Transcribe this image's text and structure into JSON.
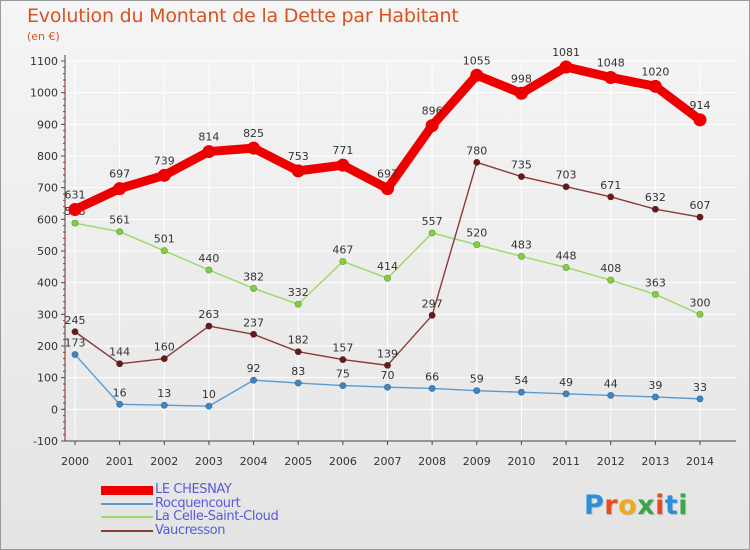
{
  "header": {
    "title": "Evolution du Montant de la Dette par Habitant",
    "unit": "(en €)"
  },
  "logo": {
    "text": "Proxiti",
    "colors": [
      "#2a8fd8",
      "#e84c1e",
      "#f2a81d",
      "#3aa646",
      "#e84c1e",
      "#2a8fd8",
      "#3aa646"
    ]
  },
  "colors": {
    "title": "#d9531e",
    "legend_text": "#5a5ad8",
    "grid": "#ffffff",
    "axis_tick": "#d01818"
  },
  "chart_data": {
    "type": "line",
    "title": "Evolution du Montant de la Dette par Habitant",
    "ylabel": "(en €)",
    "xlabel": "",
    "x": [
      "2000",
      "2001",
      "2002",
      "2003",
      "2004",
      "2005",
      "2006",
      "2007",
      "2008",
      "2009",
      "2010",
      "2011",
      "2012",
      "2013",
      "2014"
    ],
    "ylim": [
      -100,
      1100
    ],
    "yticks": [
      -100,
      0,
      100,
      200,
      300,
      400,
      500,
      600,
      700,
      800,
      900,
      1000,
      1100
    ],
    "grid": true,
    "legend_position": "bottom-left",
    "series": [
      {
        "name": "LE CHESNAY",
        "values": [
          631,
          697,
          739,
          814,
          825,
          753,
          771,
          697,
          896,
          1055,
          998,
          1081,
          1048,
          1020,
          914
        ],
        "color": "#ee0000",
        "marker_color": "#ee0000"
      },
      {
        "name": "Rocquencourt",
        "values": [
          173,
          16,
          13,
          10,
          92,
          83,
          75,
          70,
          66,
          59,
          54,
          49,
          44,
          39,
          33
        ],
        "color": "#5b9bd0",
        "marker_color": "#3d86c6"
      },
      {
        "name": "La Celle-Saint-Cloud",
        "values": [
          588,
          561,
          501,
          440,
          382,
          332,
          467,
          414,
          557,
          520,
          483,
          448,
          408,
          363,
          300
        ],
        "color": "#9ad86a",
        "marker_color": "#7fd23a"
      },
      {
        "name": "Vaucresson",
        "values": [
          245,
          144,
          160,
          263,
          237,
          182,
          157,
          139,
          297,
          780,
          735,
          703,
          671,
          632,
          607
        ],
        "color": "#8b3a3a",
        "marker_color": "#6a1818"
      }
    ]
  }
}
